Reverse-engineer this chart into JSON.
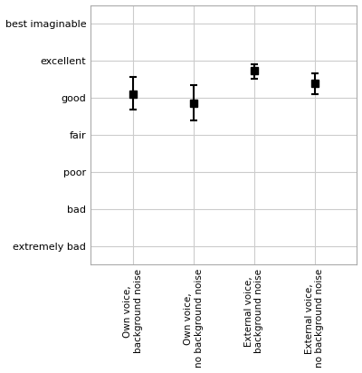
{
  "categories": [
    "Own voice,\nbackground noise",
    "Own voice,\nno background noise",
    "External voice,\nbackground noise",
    "External voice,\nno background noise"
  ],
  "means": [
    5.1,
    4.85,
    5.72,
    5.4
  ],
  "ci_lower": [
    0.42,
    0.45,
    0.22,
    0.3
  ],
  "ci_upper": [
    0.45,
    0.5,
    0.18,
    0.25
  ],
  "yticks": [
    1,
    2,
    3,
    4,
    5,
    6,
    7
  ],
  "ytick_labels": [
    "extremely bad",
    "bad",
    "poor",
    "fair",
    "good",
    "excellent",
    "best imaginable"
  ],
  "ylim": [
    0.5,
    7.5
  ],
  "marker": "s",
  "marker_color": "black",
  "marker_size": 6,
  "capsize": 3,
  "elinewidth": 1.5,
  "grid_color": "#cccccc",
  "background_color": "#ffffff",
  "ytick_fontsize": 8,
  "xtick_fontsize": 7.5
}
